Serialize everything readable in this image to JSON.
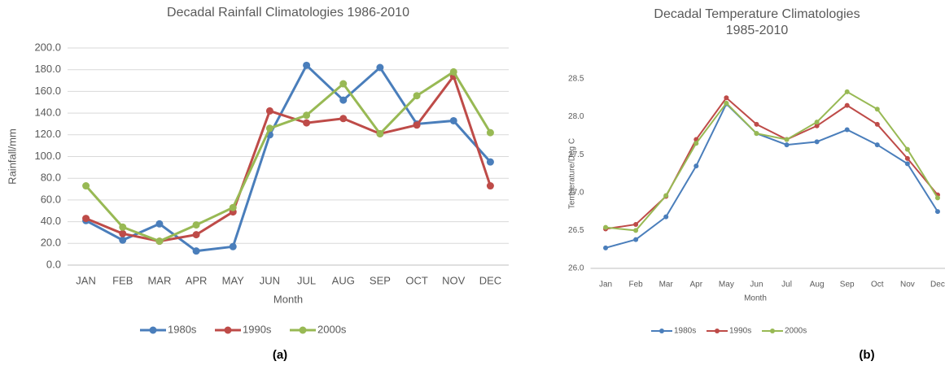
{
  "chart_data": [
    {
      "type": "line",
      "title": "Decadal Rainfall Climatologies 1986-2010",
      "x_label": "Month",
      "y_label": "Rainfall/mm",
      "categories": [
        "JAN",
        "FEB",
        "MAR",
        "APR",
        "MAY",
        "JUN",
        "JUL",
        "AUG",
        "SEP",
        "OCT",
        "NOV",
        "DEC"
      ],
      "series": [
        {
          "name": "1980s",
          "color": "#4a7ebb",
          "values": [
            41,
            23,
            38,
            13,
            17,
            120,
            184,
            152,
            182,
            130,
            133,
            95
          ]
        },
        {
          "name": "1990s",
          "color": "#be4b48",
          "values": [
            43,
            29,
            22,
            28,
            49,
            142,
            131,
            135,
            121,
            129,
            174,
            73
          ]
        },
        {
          "name": "2000s",
          "color": "#98b954",
          "values": [
            73,
            35,
            22,
            37,
            53,
            126,
            138,
            167,
            121,
            156,
            178,
            122
          ]
        }
      ],
      "ylim": [
        0,
        200
      ],
      "yticks": [
        {
          "value": 0,
          "label": "0.0"
        },
        {
          "value": 20,
          "label": "20.0"
        },
        {
          "value": 40,
          "label": "40.0"
        },
        {
          "value": 60,
          "label": "60.0"
        },
        {
          "value": 80,
          "label": "80.0"
        },
        {
          "value": 100,
          "label": "100.0"
        },
        {
          "value": 120,
          "label": "120.0"
        },
        {
          "value": 140,
          "label": "140.0"
        },
        {
          "value": 160,
          "label": "160.0"
        },
        {
          "value": 180,
          "label": "180.0"
        },
        {
          "value": 200,
          "label": "200.0"
        }
      ],
      "grid": true,
      "legend": "bottom",
      "caption": "(a)"
    },
    {
      "type": "line",
      "title": "Decadal Temperature Climatologies 1985-2010",
      "x_label": "Month",
      "y_label": "Temperature/Deg C",
      "categories": [
        "Jan",
        "Feb",
        "Mar",
        "Apr",
        "May",
        "Jun",
        "Jul",
        "Aug",
        "Sep",
        "Oct",
        "Nov",
        "Dec"
      ],
      "series": [
        {
          "name": "1980s",
          "color": "#4a7ebb",
          "values": [
            26.27,
            26.38,
            26.68,
            27.35,
            28.17,
            27.78,
            27.63,
            27.67,
            27.83,
            27.63,
            27.38,
            26.75
          ]
        },
        {
          "name": "1990s",
          "color": "#be4b48",
          "values": [
            26.52,
            26.58,
            26.95,
            27.7,
            28.25,
            27.9,
            27.7,
            27.88,
            28.15,
            27.9,
            27.45,
            26.97
          ]
        },
        {
          "name": "2000s",
          "color": "#98b954",
          "values": [
            26.54,
            26.5,
            26.96,
            27.65,
            28.18,
            27.78,
            27.7,
            27.93,
            28.33,
            28.1,
            27.57,
            26.93
          ]
        }
      ],
      "ylim": [
        26,
        28.5
      ],
      "yticks": [
        {
          "value": 26,
          "label": "26.0"
        },
        {
          "value": 26.5,
          "label": "26.5"
        },
        {
          "value": 27,
          "label": "27.0"
        },
        {
          "value": 27.5,
          "label": "27.5"
        },
        {
          "value": 28,
          "label": "28.0"
        },
        {
          "value": 28.5,
          "label": "28.5"
        }
      ],
      "grid": false,
      "legend": "bottom",
      "caption": "(b)"
    }
  ]
}
